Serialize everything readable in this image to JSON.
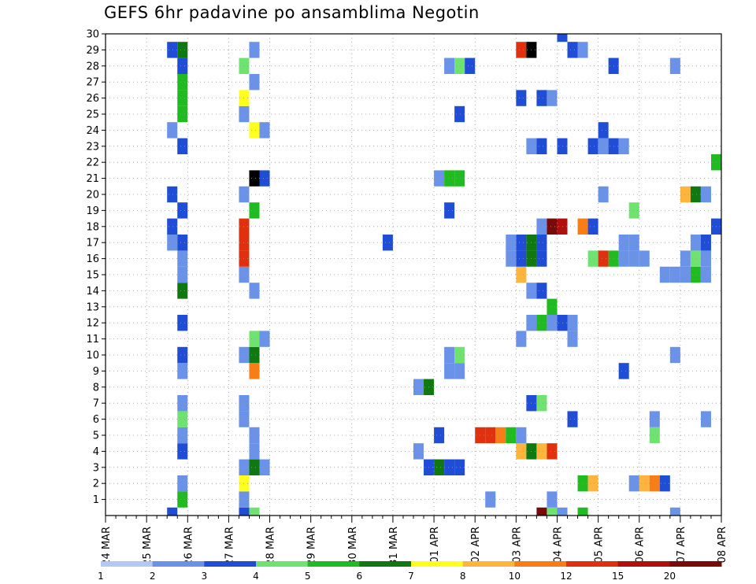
{
  "chart_data": {
    "type": "heatmap",
    "title": "GEFS 6hr padavine po ansamblima Negotin",
    "xlabel": "",
    "ylabel": "",
    "x_axis_labels": [
      "24 MAR",
      "25 MAR",
      "26 MAR",
      "27 MAR",
      "28 MAR",
      "29 MAR",
      "30 MAR",
      "31 MAR",
      "01 APR",
      "02 APR",
      "03 APR",
      "04 APR",
      "05 APR",
      "06 APR",
      "07 APR",
      "08 APR"
    ],
    "x_steps_per_day": 4,
    "xlim_steps": [
      0,
      60
    ],
    "y_axis_labels": [
      "1",
      "2",
      "3",
      "4",
      "5",
      "6",
      "7",
      "8",
      "9",
      "10",
      "11",
      "12",
      "13",
      "14",
      "15",
      "16",
      "17",
      "18",
      "19",
      "20",
      "21",
      "22",
      "23",
      "24",
      "25",
      "26",
      "27",
      "28",
      "29",
      "30"
    ],
    "ylim": [
      0,
      30
    ],
    "grid": true,
    "legend_position": "bottom",
    "colorbar": {
      "labels": [
        "1",
        "2",
        "3",
        "4",
        "5",
        "6",
        "7",
        "8",
        "10",
        "12",
        "15",
        "20"
      ],
      "colors": [
        "#b4c8f5",
        "#6a92e8",
        "#1f4dd6",
        "#6fe36f",
        "#20bb20",
        "#107810",
        "#ffff1e",
        "#ffb43c",
        "#f77d14",
        "#e0300e",
        "#b0100c",
        "#780a0a"
      ]
    },
    "units": "mm",
    "cells": [
      [
        6.5,
        0,
        2
      ],
      [
        13.5,
        0,
        2
      ],
      [
        14.5,
        0,
        3
      ],
      [
        42.5,
        0,
        11
      ],
      [
        43.5,
        0,
        3
      ],
      [
        44.5,
        0,
        1
      ],
      [
        46.5,
        0,
        4
      ],
      [
        55.5,
        0,
        1
      ],
      [
        7.5,
        1,
        4
      ],
      [
        13.5,
        1,
        1
      ],
      [
        37.5,
        1,
        1
      ],
      [
        43.5,
        1,
        1
      ],
      [
        7.5,
        2,
        1
      ],
      [
        13.5,
        2,
        6
      ],
      [
        46.5,
        2,
        4
      ],
      [
        47.5,
        2,
        7
      ],
      [
        51.5,
        2,
        1
      ],
      [
        52.5,
        2,
        7
      ],
      [
        53.5,
        2,
        8
      ],
      [
        54.5,
        2,
        2
      ],
      [
        13.5,
        3,
        1
      ],
      [
        14.5,
        3,
        5
      ],
      [
        15.5,
        3,
        1
      ],
      [
        31.5,
        3,
        2
      ],
      [
        32.5,
        3,
        5
      ],
      [
        33.5,
        3,
        2
      ],
      [
        34.5,
        3,
        2
      ],
      [
        7.5,
        4,
        2
      ],
      [
        14.5,
        4,
        1
      ],
      [
        30.5,
        4,
        1
      ],
      [
        40.5,
        4,
        7
      ],
      [
        41.5,
        4,
        5
      ],
      [
        42.5,
        4,
        7
      ],
      [
        43.5,
        4,
        9
      ],
      [
        7.5,
        5,
        1
      ],
      [
        14.5,
        5,
        1
      ],
      [
        32.5,
        5,
        2
      ],
      [
        36.5,
        5,
        9
      ],
      [
        37.5,
        5,
        9
      ],
      [
        38.5,
        5,
        8
      ],
      [
        39.5,
        5,
        4
      ],
      [
        40.5,
        5,
        1
      ],
      [
        53.5,
        5,
        3
      ],
      [
        7.5,
        6,
        3
      ],
      [
        13.5,
        6,
        1
      ],
      [
        45.5,
        6,
        2
      ],
      [
        53.5,
        6,
        1
      ],
      [
        58.5,
        6,
        1
      ],
      [
        7.5,
        7,
        1
      ],
      [
        13.5,
        7,
        1
      ],
      [
        41.5,
        7,
        2
      ],
      [
        42.5,
        7,
        3
      ],
      [
        30.5,
        8,
        1
      ],
      [
        31.5,
        8,
        5
      ],
      [
        7.5,
        9,
        1
      ],
      [
        14.5,
        9,
        8
      ],
      [
        33.5,
        9,
        1
      ],
      [
        34.5,
        9,
        1
      ],
      [
        50.5,
        9,
        2
      ],
      [
        7.5,
        10,
        2
      ],
      [
        13.5,
        10,
        1
      ],
      [
        14.5,
        10,
        5
      ],
      [
        33.5,
        10,
        1
      ],
      [
        34.5,
        10,
        3
      ],
      [
        55.5,
        10,
        1
      ],
      [
        14.5,
        11,
        3
      ],
      [
        15.5,
        11,
        1
      ],
      [
        40.5,
        11,
        1
      ],
      [
        45.5,
        11,
        1
      ],
      [
        7.5,
        12,
        2
      ],
      [
        41.5,
        12,
        1
      ],
      [
        42.5,
        12,
        4
      ],
      [
        43.5,
        12,
        1
      ],
      [
        44.5,
        12,
        2
      ],
      [
        45.5,
        12,
        1
      ],
      [
        43.5,
        13,
        4
      ],
      [
        7.5,
        14,
        5
      ],
      [
        14.5,
        14,
        1
      ],
      [
        41.5,
        14,
        1
      ],
      [
        42.5,
        14,
        2
      ],
      [
        7.5,
        15,
        1
      ],
      [
        13.5,
        15,
        1
      ],
      [
        40.5,
        15,
        7
      ],
      [
        54.5,
        15,
        1
      ],
      [
        55.5,
        15,
        1
      ],
      [
        56.5,
        15,
        1
      ],
      [
        57.5,
        15,
        4
      ],
      [
        58.5,
        15,
        1
      ],
      [
        7.5,
        16,
        1
      ],
      [
        13.5,
        16,
        9
      ],
      [
        39.5,
        16,
        1
      ],
      [
        40.5,
        16,
        2
      ],
      [
        41.5,
        16,
        5
      ],
      [
        42.5,
        16,
        2
      ],
      [
        47.5,
        16,
        3
      ],
      [
        48.5,
        16,
        9
      ],
      [
        49.5,
        16,
        4
      ],
      [
        50.5,
        16,
        1
      ],
      [
        51.5,
        16,
        1
      ],
      [
        52.5,
        16,
        1
      ],
      [
        56.5,
        16,
        1
      ],
      [
        57.5,
        16,
        3
      ],
      [
        58.5,
        16,
        1
      ],
      [
        6.5,
        17,
        1
      ],
      [
        7.5,
        17,
        2
      ],
      [
        13.5,
        17,
        9
      ],
      [
        27.5,
        17,
        2
      ],
      [
        39.5,
        17,
        1
      ],
      [
        40.5,
        17,
        2
      ],
      [
        41.5,
        17,
        5
      ],
      [
        42.5,
        17,
        2
      ],
      [
        50.5,
        17,
        1
      ],
      [
        51.5,
        17,
        1
      ],
      [
        57.5,
        17,
        1
      ],
      [
        58.5,
        17,
        2
      ],
      [
        6.5,
        18,
        2
      ],
      [
        13.5,
        18,
        9
      ],
      [
        42.5,
        18,
        1
      ],
      [
        43.5,
        18,
        11
      ],
      [
        44.5,
        18,
        10
      ],
      [
        46.5,
        18,
        8
      ],
      [
        47.5,
        18,
        2
      ],
      [
        59.5,
        18,
        2
      ],
      [
        7.5,
        19,
        2
      ],
      [
        14.5,
        19,
        4
      ],
      [
        33.5,
        19,
        2
      ],
      [
        51.5,
        19,
        3
      ],
      [
        6.5,
        20,
        2
      ],
      [
        13.5,
        20,
        1
      ],
      [
        48.5,
        20,
        1
      ],
      [
        56.5,
        20,
        7
      ],
      [
        57.5,
        20,
        5
      ],
      [
        58.5,
        20,
        1
      ],
      [
        14.5,
        21,
        12
      ],
      [
        15.5,
        21,
        2
      ],
      [
        32.5,
        21,
        1
      ],
      [
        33.5,
        21,
        4
      ],
      [
        34.5,
        21,
        4
      ],
      [
        59.5,
        22,
        4
      ],
      [
        7.5,
        23,
        2
      ],
      [
        41.5,
        23,
        1
      ],
      [
        42.5,
        23,
        2
      ],
      [
        44.5,
        23,
        2
      ],
      [
        47.5,
        23,
        2
      ],
      [
        48.5,
        23,
        1
      ],
      [
        49.5,
        23,
        2
      ],
      [
        50.5,
        23,
        1
      ],
      [
        6.5,
        24,
        1
      ],
      [
        14.5,
        24,
        6
      ],
      [
        15.5,
        24,
        1
      ],
      [
        48.5,
        24,
        2
      ],
      [
        7.5,
        25,
        4
      ],
      [
        13.5,
        25,
        1
      ],
      [
        34.5,
        25,
        2
      ],
      [
        7.5,
        26,
        4
      ],
      [
        13.5,
        26,
        6
      ],
      [
        40.5,
        26,
        2
      ],
      [
        42.5,
        26,
        2
      ],
      [
        43.5,
        26,
        1
      ],
      [
        7.5,
        27,
        4
      ],
      [
        14.5,
        27,
        1
      ],
      [
        7.5,
        28,
        2
      ],
      [
        13.5,
        28,
        3
      ],
      [
        33.5,
        28,
        1
      ],
      [
        34.5,
        28,
        3
      ],
      [
        35.5,
        28,
        2
      ],
      [
        49.5,
        28,
        2
      ],
      [
        55.5,
        28,
        1
      ],
      [
        6.5,
        29,
        2
      ],
      [
        7.5,
        29,
        5
      ],
      [
        14.5,
        29,
        1
      ],
      [
        40.5,
        29,
        9
      ],
      [
        41.5,
        29,
        12
      ],
      [
        45.5,
        29,
        2
      ],
      [
        46.5,
        29,
        1
      ],
      [
        44.5,
        30,
        2
      ]
    ]
  }
}
